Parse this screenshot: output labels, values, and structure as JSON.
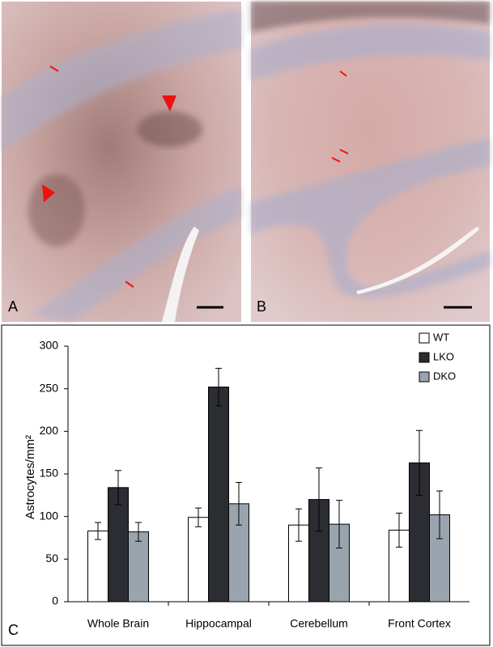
{
  "panels": [
    {
      "label": "A"
    },
    {
      "label": "B"
    }
  ],
  "chart_data": {
    "type": "bar",
    "panel_label": "C",
    "y_label": "Astrocytes/mm²",
    "categories": [
      "Whole Brain",
      "Hippocampal",
      "Cerebellum",
      "Front Cortex"
    ],
    "series": [
      {
        "name": "WT",
        "color": "#ffffff",
        "values": [
          83,
          99,
          90,
          84
        ],
        "errors": [
          10,
          11,
          19,
          20
        ]
      },
      {
        "name": "LKO",
        "color": "#2b2d33",
        "values": [
          134,
          252,
          120,
          163
        ],
        "errors": [
          20,
          22,
          37,
          38
        ]
      },
      {
        "name": "DKO",
        "color": "#9aa4ae",
        "values": [
          82,
          115,
          91,
          102
        ],
        "errors": [
          11,
          25,
          28,
          28
        ]
      }
    ],
    "ylim": [
      0,
      300
    ],
    "yticks": [
      0,
      50,
      100,
      150,
      200,
      250,
      300
    ],
    "grid": false,
    "legend": "upper right"
  }
}
